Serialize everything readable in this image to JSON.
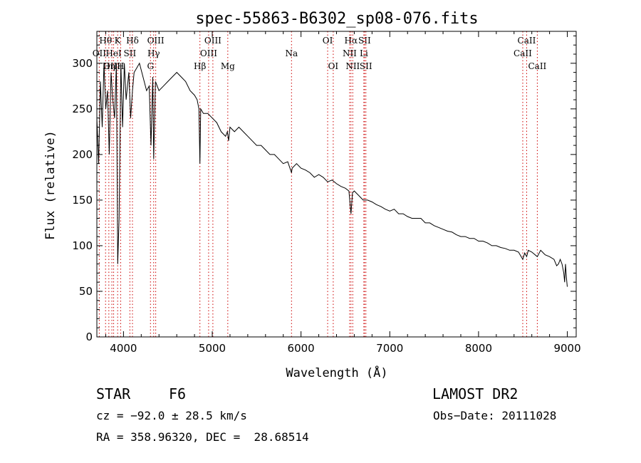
{
  "chart_data": {
    "type": "line",
    "title": "spec-55863-B6302_sp08-076.fits",
    "xlabel": "Wavelength (Å)",
    "ylabel": "Flux (relative)",
    "xlim": [
      3700,
      9100
    ],
    "ylim": [
      0,
      335
    ],
    "xticks": [
      4000,
      5000,
      6000,
      7000,
      8000,
      9000
    ],
    "yticks": [
      0,
      50,
      100,
      150,
      200,
      250,
      300
    ],
    "line_color": "#000000",
    "marker_color": "#cc0000",
    "series": [
      {
        "name": "flux",
        "x": [
          3700,
          3720,
          3740,
          3760,
          3780,
          3800,
          3820,
          3840,
          3860,
          3880,
          3900,
          3920,
          3935,
          3950,
          3970,
          3990,
          4010,
          4030,
          4060,
          4080,
          4101,
          4120,
          4150,
          4180,
          4220,
          4260,
          4290,
          4310,
          4330,
          4340,
          4360,
          4400,
          4450,
          4500,
          4550,
          4600,
          4650,
          4700,
          4750,
          4800,
          4830,
          4850,
          4861,
          4870,
          4900,
          4950,
          5000,
          5050,
          5100,
          5150,
          5170,
          5184,
          5200,
          5250,
          5300,
          5350,
          5400,
          5450,
          5500,
          5550,
          5600,
          5650,
          5700,
          5750,
          5800,
          5850,
          5893,
          5900,
          5950,
          6000,
          6050,
          6100,
          6150,
          6200,
          6250,
          6300,
          6350,
          6400,
          6450,
          6500,
          6540,
          6563,
          6580,
          6600,
          6650,
          6700,
          6750,
          6800,
          6850,
          6900,
          6950,
          7000,
          7050,
          7100,
          7150,
          7200,
          7250,
          7300,
          7350,
          7400,
          7450,
          7500,
          7550,
          7600,
          7650,
          7700,
          7750,
          7800,
          7850,
          7900,
          7950,
          8000,
          8050,
          8100,
          8150,
          8200,
          8250,
          8300,
          8350,
          8400,
          8450,
          8498,
          8520,
          8542,
          8560,
          8600,
          8662,
          8700,
          8750,
          8800,
          8850,
          8880,
          8900,
          8920,
          8940,
          8960,
          8970,
          8980,
          8990,
          9000
        ],
        "y": [
          240,
          190,
          280,
          230,
          300,
          250,
          270,
          200,
          290,
          260,
          240,
          300,
          80,
          130,
          300,
          230,
          300,
          260,
          290,
          240,
          270,
          290,
          295,
          300,
          285,
          270,
          275,
          210,
          285,
          195,
          280,
          270,
          275,
          280,
          285,
          290,
          285,
          280,
          270,
          265,
          260,
          250,
          190,
          250,
          245,
          245,
          240,
          235,
          225,
          220,
          225,
          215,
          230,
          225,
          230,
          225,
          220,
          215,
          210,
          210,
          205,
          200,
          200,
          195,
          190,
          192,
          180,
          185,
          190,
          185,
          183,
          180,
          175,
          178,
          175,
          170,
          172,
          168,
          165,
          163,
          160,
          135,
          158,
          160,
          155,
          150,
          150,
          148,
          145,
          143,
          140,
          138,
          140,
          135,
          135,
          132,
          130,
          130,
          130,
          125,
          125,
          122,
          120,
          118,
          116,
          115,
          112,
          110,
          110,
          108,
          108,
          105,
          105,
          103,
          100,
          100,
          98,
          97,
          95,
          95,
          93,
          85,
          92,
          88,
          95,
          93,
          88,
          95,
          90,
          88,
          85,
          78,
          80,
          85,
          80,
          70,
          60,
          80,
          65,
          55
        ]
      }
    ],
    "line_markers": [
      {
        "label": "Hθ",
        "wl": 3798,
        "row": 0
      },
      {
        "label": "OII",
        "wl": 3727,
        "row": 1
      },
      {
        "label": "OIII",
        "wl": 3869,
        "row": 2
      },
      {
        "label": "K",
        "wl": 3934,
        "row": 0
      },
      {
        "label": "HeI",
        "wl": 3889,
        "row": 1
      },
      {
        "label": "Hη",
        "wl": 3835,
        "row": 2
      },
      {
        "label": "Hδ",
        "wl": 4101,
        "row": 0
      },
      {
        "label": "SII",
        "wl": 4072,
        "row": 1
      },
      {
        "label": "H",
        "wl": 3968,
        "row": 2
      },
      {
        "label": "OIII",
        "wl": 4363,
        "row": 0
      },
      {
        "label": "Hγ",
        "wl": 4340,
        "row": 1
      },
      {
        "label": "G",
        "wl": 4304,
        "row": 2
      },
      {
        "label": "Hβ",
        "wl": 4861,
        "row": 2
      },
      {
        "label": "OIII",
        "wl": 5007,
        "row": 0
      },
      {
        "label": "OIII",
        "wl": 4959,
        "row": 1
      },
      {
        "label": "Mg",
        "wl": 5175,
        "row": 2
      },
      {
        "label": "Na",
        "wl": 5893,
        "row": 1
      },
      {
        "label": "OI",
        "wl": 6300,
        "row": 0
      },
      {
        "label": "OI",
        "wl": 6363,
        "row": 2
      },
      {
        "label": "Hα",
        "wl": 6563,
        "row": 0
      },
      {
        "label": "SII",
        "wl": 6716,
        "row": 0
      },
      {
        "label": "NII",
        "wl": 6548,
        "row": 1
      },
      {
        "label": "Li",
        "wl": 6708,
        "row": 1
      },
      {
        "label": "NII",
        "wl": 6583,
        "row": 2
      },
      {
        "label": "SII",
        "wl": 6731,
        "row": 2
      },
      {
        "label": "CaII",
        "wl": 8542,
        "row": 0
      },
      {
        "label": "CaII",
        "wl": 8498,
        "row": 1
      },
      {
        "label": "CaII",
        "wl": 8662,
        "row": 2
      }
    ]
  },
  "info": {
    "object_type": "STAR",
    "subclass": "F6",
    "survey": "LAMOST DR2",
    "cz": "cz = −92.0 ± 28.5 km/s",
    "obs_date": "Obs−Date: 20111028",
    "coords": "RA = 358.96320, DEC =  28.68514"
  }
}
